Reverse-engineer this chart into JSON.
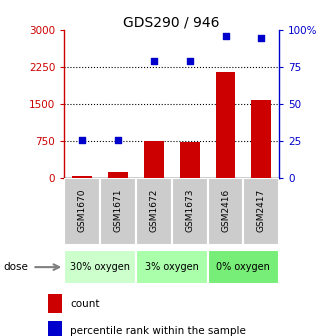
{
  "title": "GDS290 / 946",
  "samples": [
    "GSM1670",
    "GSM1671",
    "GSM1672",
    "GSM1673",
    "GSM2416",
    "GSM2417"
  ],
  "bar_values": [
    50,
    120,
    750,
    740,
    2150,
    1580
  ],
  "scatter_values": [
    26,
    26,
    79,
    79,
    96,
    95
  ],
  "groups": [
    {
      "label": "30% oxygen",
      "n": 2,
      "color": "#ccffcc"
    },
    {
      "label": "3% oxygen",
      "n": 2,
      "color": "#aaffaa"
    },
    {
      "label": "0% oxygen",
      "n": 2,
      "color": "#77ee77"
    }
  ],
  "bar_color": "#cc0000",
  "scatter_color": "#0000cc",
  "left_ylim": [
    0,
    3000
  ],
  "right_ylim": [
    0,
    100
  ],
  "left_yticks": [
    0,
    750,
    1500,
    2250,
    3000
  ],
  "right_yticks": [
    0,
    25,
    50,
    75,
    100
  ],
  "right_yticklabels": [
    "0",
    "25",
    "50",
    "75",
    "100%"
  ],
  "dotted_lines": [
    750,
    1500,
    2250
  ],
  "sample_bg_color": "#cccccc",
  "plot_bg": "#ffffff"
}
